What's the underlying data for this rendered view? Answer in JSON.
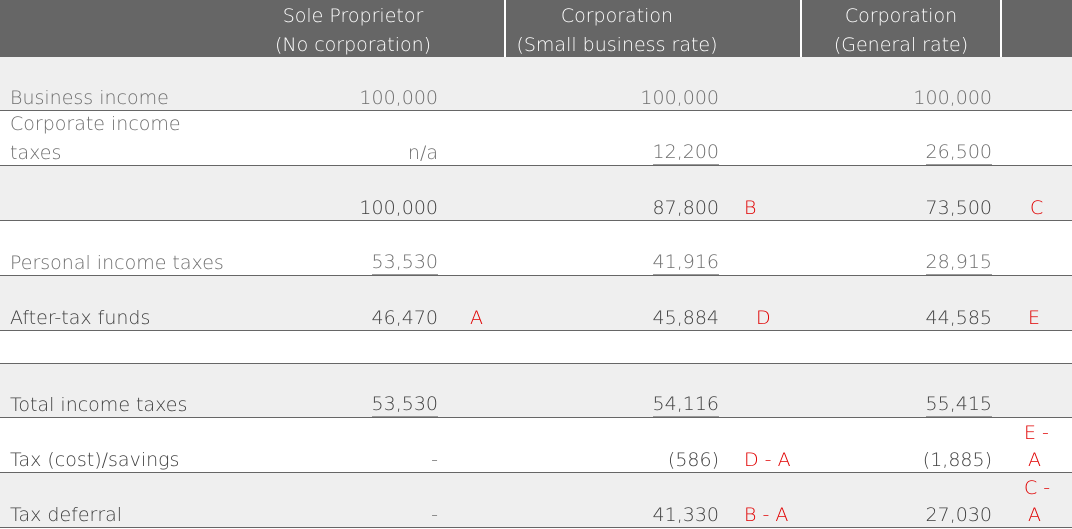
{
  "headers": {
    "col1_line1": "Sole Proprietor",
    "col1_line2": "(No corporation)",
    "col2_line1": "Corporation",
    "col2_line2": "(Small business rate)",
    "col3_line1": "Corporation",
    "col3_line2": "(General rate)"
  },
  "rows": [
    {
      "label": "Business income",
      "sole": "100,000",
      "small": "100,000",
      "general": "100,000"
    },
    {
      "label_line1": "Corporate income",
      "label_line2": "taxes",
      "sole": "n/a",
      "small": "12,200",
      "general": "26,500"
    },
    {
      "label": "",
      "sole": "100,000",
      "small": "87,800",
      "small_tag": "B",
      "general": "73,500",
      "general_tag": "C"
    },
    {
      "label": "Personal income taxes",
      "sole": "53,530",
      "small": "41,916",
      "general": "28,915"
    },
    {
      "label": "After-tax funds",
      "sole": "46,470",
      "sole_tag": "A",
      "small": "45,884",
      "small_tag": "D",
      "general": "44,585",
      "general_tag": "E"
    },
    {
      "label": "Total income taxes",
      "sole": "53,530",
      "small": "54,116",
      "general": "55,415"
    },
    {
      "label": "Tax (cost)/savings",
      "sole": "-",
      "small": "(586)",
      "small_tag": "D - A",
      "general": "(1,885)",
      "general_tag_line1": "E -",
      "general_tag_line2": "A"
    },
    {
      "label": "Tax deferral",
      "sole": "-",
      "small": "41,330",
      "small_tag": "B - A",
      "general": "27,030",
      "general_tag_line1": "C -",
      "general_tag_line2": "A"
    }
  ],
  "colors": {
    "header_bg": "#666666",
    "row_grey": "#efefef",
    "tag_red": "#e00000"
  }
}
